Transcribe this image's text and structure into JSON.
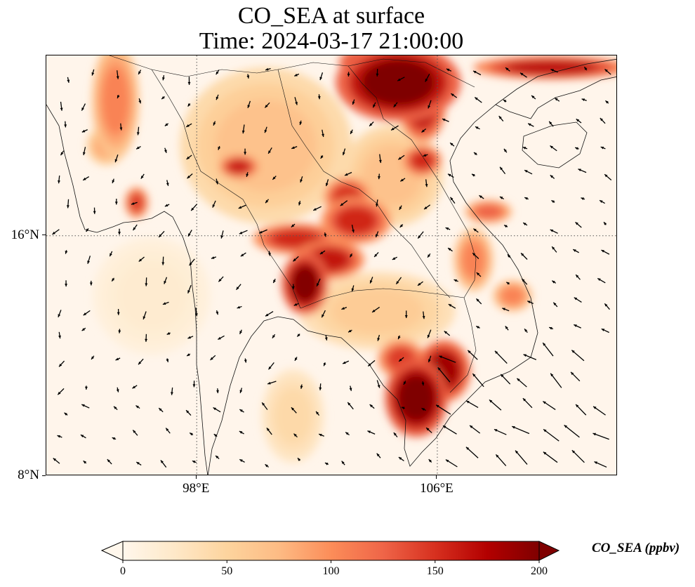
{
  "title": {
    "line1": "CO_SEA at surface",
    "line2": "Time: 2024-03-17 21:00:00"
  },
  "map": {
    "lon_range": [
      93,
      112
    ],
    "lat_range": [
      8,
      22
    ],
    "lon_ticks": [
      {
        "label": "98°E",
        "value": 98
      },
      {
        "label": "106°E",
        "value": 106
      }
    ],
    "lat_ticks": [
      {
        "label": "16°N",
        "value": 16
      },
      {
        "label": "8°N",
        "value": 8
      }
    ],
    "gridlines": "dotted",
    "field_name": "CO_SEA",
    "units": "ppbv",
    "colormap": "OrRd",
    "hotspots": [
      {
        "lon": 104.7,
        "lat": 21.1,
        "value": 210,
        "rx": 1.6,
        "ry": 1.0
      },
      {
        "lon": 105.5,
        "lat": 20.3,
        "value": 175,
        "rx": 0.6,
        "ry": 0.9
      },
      {
        "lon": 103.9,
        "lat": 21.8,
        "value": 200,
        "rx": 0.9,
        "ry": 0.4
      },
      {
        "lon": 109.8,
        "lat": 21.6,
        "value": 175,
        "rx": 2.0,
        "ry": 0.3
      },
      {
        "lon": 105.5,
        "lat": 18.5,
        "value": 160,
        "rx": 0.5,
        "ry": 0.4
      },
      {
        "lon": 101.3,
        "lat": 15.9,
        "value": 160,
        "rx": 1.1,
        "ry": 0.4
      },
      {
        "lon": 101.6,
        "lat": 14.4,
        "value": 205,
        "rx": 0.6,
        "ry": 0.8
      },
      {
        "lon": 102.4,
        "lat": 15.2,
        "value": 170,
        "rx": 0.9,
        "ry": 0.5
      },
      {
        "lon": 103.3,
        "lat": 16.5,
        "value": 160,
        "rx": 0.9,
        "ry": 0.6
      },
      {
        "lon": 103.0,
        "lat": 17.3,
        "value": 155,
        "rx": 0.6,
        "ry": 0.5
      },
      {
        "lon": 99.4,
        "lat": 18.3,
        "value": 165,
        "rx": 0.5,
        "ry": 0.3
      },
      {
        "lon": 96.0,
        "lat": 17.1,
        "value": 150,
        "rx": 0.3,
        "ry": 0.4
      },
      {
        "lon": 105.3,
        "lat": 10.6,
        "value": 215,
        "rx": 0.8,
        "ry": 1.0
      },
      {
        "lon": 106.2,
        "lat": 11.5,
        "value": 190,
        "rx": 0.7,
        "ry": 0.8
      },
      {
        "lon": 104.8,
        "lat": 11.9,
        "value": 150,
        "rx": 0.6,
        "ry": 0.5
      },
      {
        "lon": 107.2,
        "lat": 15.2,
        "value": 110,
        "rx": 0.5,
        "ry": 0.8
      },
      {
        "lon": 107.7,
        "lat": 16.8,
        "value": 130,
        "rx": 0.6,
        "ry": 0.3
      },
      {
        "lon": 108.5,
        "lat": 14.0,
        "value": 110,
        "rx": 0.5,
        "ry": 0.4
      },
      {
        "lon": 95.3,
        "lat": 20.5,
        "value": 110,
        "rx": 0.6,
        "ry": 1.5
      },
      {
        "lon": 95.0,
        "lat": 19.0,
        "value": 90,
        "rx": 0.5,
        "ry": 0.5
      },
      {
        "lon": 100.3,
        "lat": 19.0,
        "value": 70,
        "rx": 2.2,
        "ry": 2.0
      },
      {
        "lon": 104.0,
        "lat": 13.5,
        "value": 60,
        "rx": 2.0,
        "ry": 1.0
      },
      {
        "lon": 104.5,
        "lat": 18.0,
        "value": 70,
        "rx": 1.3,
        "ry": 1.3
      },
      {
        "lon": 101.2,
        "lat": 10.0,
        "value": 45,
        "rx": 0.8,
        "ry": 1.2
      },
      {
        "lon": 96.5,
        "lat": 14.0,
        "value": 20,
        "rx": 1.5,
        "ry": 1.5
      }
    ]
  },
  "colorbar": {
    "label": "CO_SEA (ppbv)",
    "min": 0,
    "max": 200,
    "ticks": [
      "0",
      "50",
      "100",
      "150",
      "200"
    ],
    "extend": "both",
    "stops": [
      "#fff7ec",
      "#fee8c8",
      "#fdd49e",
      "#fdbb84",
      "#fc8d59",
      "#ef6548",
      "#d7301f",
      "#b30000",
      "#7f0000"
    ]
  }
}
